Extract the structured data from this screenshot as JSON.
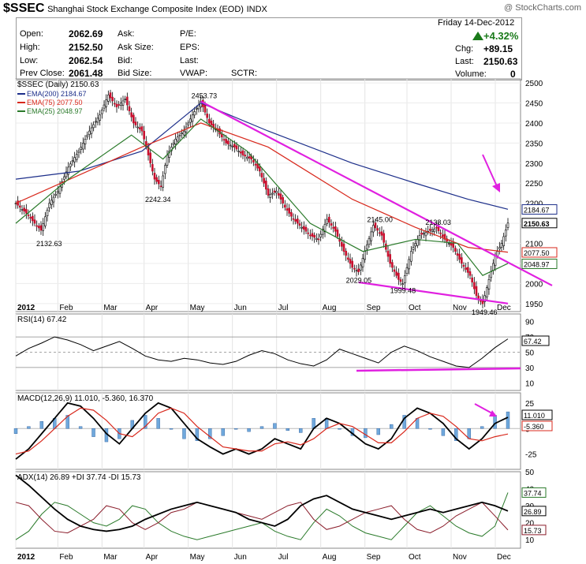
{
  "header": {
    "symbol": "$SSEC",
    "name": "Shanghai Stock Exchange Composite Index (EOD)",
    "exchange": "INDX",
    "credit": "@ StockCharts.com"
  },
  "quote": {
    "open_label": "Open:",
    "open": "2062.69",
    "high_label": "High:",
    "high": "2152.50",
    "low_label": "Low:",
    "low": "2062.54",
    "prev_label": "Prev Close:",
    "prev": "2061.48",
    "ask_label": "Ask:",
    "asksize_label": "Ask Size:",
    "bid_label": "Bid:",
    "bidsize_label": "Bid Size:",
    "pe_label": "P/E:",
    "eps_label": "EPS:",
    "last_label": "Last:",
    "vwap_label": "VWAP:",
    "sctr_label": "SCTR:",
    "date": "Friday  14-Dec-2012",
    "pct": "+4.32%",
    "chg_label": "Chg:",
    "chg": "+89.15",
    "last2_label": "Last:",
    "last": "2150.63",
    "vol_label": "Volume:",
    "vol": "0",
    "up_color": "#1a7a1a"
  },
  "chart_data": [
    {
      "type": "candlestick",
      "title": "$SSEC (Daily) 2150.63",
      "legend": [
        {
          "name": "EMA(200) 2184.67",
          "color": "#1c2e8a"
        },
        {
          "name": "EMA(75) 2077.50",
          "color": "#d8281c"
        },
        {
          "name": "EMA(25) 2048.97",
          "color": "#2a7a2a"
        }
      ],
      "x_ticks": [
        "2012",
        "Feb",
        "Mar",
        "Apr",
        "May",
        "Jun",
        "Jul",
        "Aug",
        "Sep",
        "Oct",
        "Nov",
        "Dec"
      ],
      "y_ticks": [
        1950,
        2000,
        2050,
        2100,
        2150,
        2200,
        2250,
        2300,
        2350,
        2400,
        2450,
        2500
      ],
      "ylim": [
        1930,
        2510
      ],
      "right_labels": [
        "2184.67",
        "2150.63",
        "2077.50",
        "2048.97"
      ],
      "price_path": [
        [
          0,
          2200
        ],
        [
          5,
          2175
        ],
        [
          9,
          2150
        ],
        [
          12,
          2132.63
        ],
        [
          16,
          2200
        ],
        [
          20,
          2230
        ],
        [
          25,
          2290
        ],
        [
          30,
          2330
        ],
        [
          35,
          2380
        ],
        [
          40,
          2420
        ],
        [
          44,
          2470
        ],
        [
          48,
          2440
        ],
        [
          52,
          2460
        ],
        [
          56,
          2400
        ],
        [
          60,
          2380
        ],
        [
          63,
          2320
        ],
        [
          66,
          2260
        ],
        [
          69,
          2242.34
        ],
        [
          72,
          2320
        ],
        [
          76,
          2360
        ],
        [
          80,
          2380
        ],
        [
          84,
          2420
        ],
        [
          88,
          2453.73
        ],
        [
          92,
          2400
        ],
        [
          96,
          2380
        ],
        [
          100,
          2350
        ],
        [
          104,
          2340
        ],
        [
          108,
          2320
        ],
        [
          112,
          2310
        ],
        [
          116,
          2280
        ],
        [
          120,
          2220
        ],
        [
          124,
          2230
        ],
        [
          128,
          2190
        ],
        [
          132,
          2160
        ],
        [
          136,
          2140
        ],
        [
          140,
          2120
        ],
        [
          144,
          2110
        ],
        [
          148,
          2160
        ],
        [
          152,
          2130
        ],
        [
          156,
          2080
        ],
        [
          160,
          2040
        ],
        [
          163,
          2029.05
        ],
        [
          166,
          2080
        ],
        [
          170,
          2145.0
        ],
        [
          174,
          2120
        ],
        [
          178,
          2050
        ],
        [
          182,
          2010
        ],
        [
          184,
          1999.48
        ],
        [
          188,
          2080
        ],
        [
          192,
          2120
        ],
        [
          196,
          2130
        ],
        [
          200,
          2138.03
        ],
        [
          204,
          2110
        ],
        [
          208,
          2090
        ],
        [
          212,
          2050
        ],
        [
          216,
          2020
        ],
        [
          219,
          1970
        ],
        [
          222,
          1949.46
        ],
        [
          225,
          2010
        ],
        [
          228,
          2070
        ],
        [
          231,
          2100
        ],
        [
          234,
          2150.63
        ]
      ],
      "ema200": [
        [
          0,
          2260
        ],
        [
          30,
          2280
        ],
        [
          60,
          2330
        ],
        [
          88,
          2450
        ],
        [
          120,
          2380
        ],
        [
          160,
          2300
        ],
        [
          190,
          2250
        ],
        [
          215,
          2210
        ],
        [
          234,
          2185
        ]
      ],
      "ema75": [
        [
          0,
          2200
        ],
        [
          30,
          2270
        ],
        [
          60,
          2340
        ],
        [
          88,
          2400
        ],
        [
          120,
          2340
        ],
        [
          160,
          2210
        ],
        [
          190,
          2140
        ],
        [
          215,
          2090
        ],
        [
          234,
          2078
        ]
      ],
      "ema25": [
        [
          0,
          2150
        ],
        [
          25,
          2260
        ],
        [
          55,
          2370
        ],
        [
          70,
          2310
        ],
        [
          88,
          2410
        ],
        [
          110,
          2330
        ],
        [
          140,
          2150
        ],
        [
          165,
          2080
        ],
        [
          190,
          2110
        ],
        [
          210,
          2100
        ],
        [
          222,
          2020
        ],
        [
          234,
          2050
        ]
      ],
      "annotations": [
        "2132.63",
        "2242.34",
        "2453.73",
        "2145.00",
        "2138.03",
        "2029.05",
        "1999.48",
        "1949.46"
      ],
      "trendlines": [
        {
          "from": [
            88,
            2453.73
          ],
          "to": [
            255,
            1995
          ]
        },
        {
          "from": [
            163,
            2003
          ],
          "to": [
            234,
            1950
          ]
        }
      ]
    },
    {
      "type": "line",
      "title": "RSI(14) 67.42",
      "ylim": [
        0,
        100
      ],
      "y_ticks": [
        10,
        30,
        50,
        70,
        90
      ],
      "right_labels": [
        "67.42",
        "30"
      ],
      "values": [
        45,
        55,
        62,
        70,
        66,
        60,
        52,
        58,
        64,
        55,
        45,
        40,
        38,
        42,
        40,
        36,
        34,
        38,
        46,
        52,
        48,
        40,
        35,
        32,
        40,
        54,
        48,
        42,
        36,
        50,
        58,
        52,
        44,
        38,
        32,
        30,
        42,
        56,
        67.42
      ]
    },
    {
      "type": "line",
      "title": "MACD(12,26,9) 11.010, -5.360, 16.370",
      "ylim": [
        -40,
        35
      ],
      "y_ticks": [
        25,
        0,
        -25
      ],
      "right_labels": [
        "11.010",
        "-5.360"
      ],
      "macd": [
        -30,
        -20,
        -5,
        10,
        25,
        22,
        10,
        -5,
        -15,
        0,
        15,
        25,
        20,
        5,
        -10,
        -18,
        -25,
        -20,
        -25,
        -20,
        -10,
        -15,
        -20,
        0,
        10,
        5,
        -5,
        -15,
        -20,
        -10,
        10,
        20,
        15,
        5,
        -10,
        -20,
        -10,
        5,
        11.01
      ],
      "signal": [
        -25,
        -22,
        -12,
        0,
        12,
        20,
        18,
        8,
        -5,
        -8,
        2,
        15,
        20,
        15,
        2,
        -8,
        -18,
        -20,
        -22,
        -22,
        -15,
        -13,
        -16,
        -10,
        0,
        5,
        2,
        -6,
        -14,
        -14,
        -3,
        10,
        15,
        12,
        2,
        -10,
        -12,
        -8,
        -5.36
      ]
    },
    {
      "type": "line",
      "title": "ADX(14) 26.89 +DI 37.74 -DI 15.73",
      "ylim": [
        5,
        50
      ],
      "y_ticks": [
        50,
        40,
        30,
        20,
        10
      ],
      "right_labels": [
        "37.74",
        "26.89",
        "15.73"
      ],
      "adx": [
        48,
        42,
        35,
        28,
        22,
        18,
        16,
        15,
        16,
        18,
        22,
        25,
        28,
        30,
        32,
        30,
        28,
        26,
        22,
        20,
        18,
        22,
        30,
        34,
        36,
        32,
        28,
        26,
        24,
        22,
        24,
        26,
        28,
        26,
        28,
        30,
        32,
        30,
        26.89
      ],
      "plus_di": [
        10,
        15,
        25,
        32,
        30,
        25,
        20,
        18,
        22,
        30,
        28,
        20,
        15,
        12,
        10,
        12,
        14,
        16,
        18,
        20,
        15,
        12,
        10,
        20,
        28,
        24,
        18,
        14,
        12,
        10,
        18,
        26,
        30,
        24,
        18,
        14,
        12,
        18,
        37.74
      ],
      "minus_di": [
        32,
        30,
        22,
        15,
        14,
        18,
        22,
        30,
        28,
        20,
        16,
        20,
        26,
        28,
        32,
        30,
        28,
        26,
        24,
        22,
        26,
        30,
        32,
        22,
        16,
        18,
        22,
        26,
        28,
        30,
        22,
        16,
        14,
        18,
        24,
        28,
        32,
        24,
        15.73
      ]
    }
  ]
}
